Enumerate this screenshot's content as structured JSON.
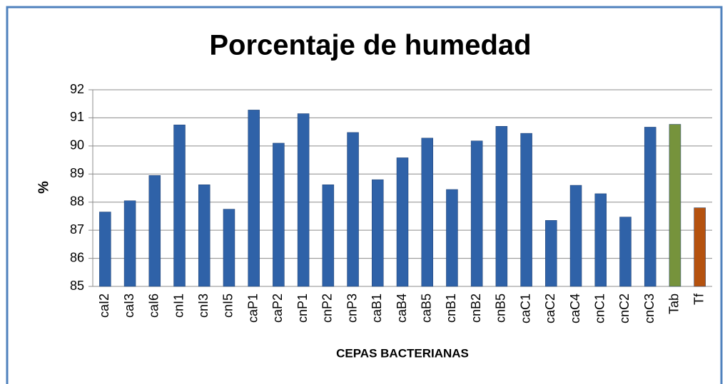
{
  "chart_data": {
    "type": "bar",
    "title": "Porcentaje de humedad",
    "x_label": "CEPAS BACTERIANAS",
    "y_label": "%",
    "categories": [
      "caI2",
      "caI3",
      "caI6",
      "cnI1",
      "cnI3",
      "cnI5",
      "caP1",
      "caP2",
      "cnP1",
      "cnP2",
      "cnP3",
      "caB1",
      "caB4",
      "caB5",
      "cnB1",
      "cnB2",
      "cnB5",
      "caC1",
      "caC2",
      "caC4",
      "cnC1",
      "cnC2",
      "cnC3",
      "Tab",
      "Tf"
    ],
    "values": [
      87.65,
      88.05,
      88.95,
      90.75,
      88.62,
      87.75,
      91.28,
      90.1,
      91.15,
      88.62,
      90.48,
      88.8,
      89.58,
      90.28,
      88.45,
      90.18,
      90.7,
      90.45,
      87.35,
      88.6,
      88.3,
      87.47,
      90.67,
      90.77,
      87.8
    ],
    "colors": [
      "#2f62a8",
      "#2f62a8",
      "#2f62a8",
      "#2f62a8",
      "#2f62a8",
      "#2f62a8",
      "#2f62a8",
      "#2f62a8",
      "#2f62a8",
      "#2f62a8",
      "#2f62a8",
      "#2f62a8",
      "#2f62a8",
      "#2f62a8",
      "#2f62a8",
      "#2f62a8",
      "#2f62a8",
      "#2f62a8",
      "#2f62a8",
      "#2f62a8",
      "#2f62a8",
      "#2f62a8",
      "#2f62a8",
      "#76933c",
      "#b5520f"
    ],
    "ylim": [
      85,
      92
    ],
    "yticks": [
      85,
      86,
      87,
      88,
      89,
      90,
      91,
      92
    ],
    "grid": true
  }
}
